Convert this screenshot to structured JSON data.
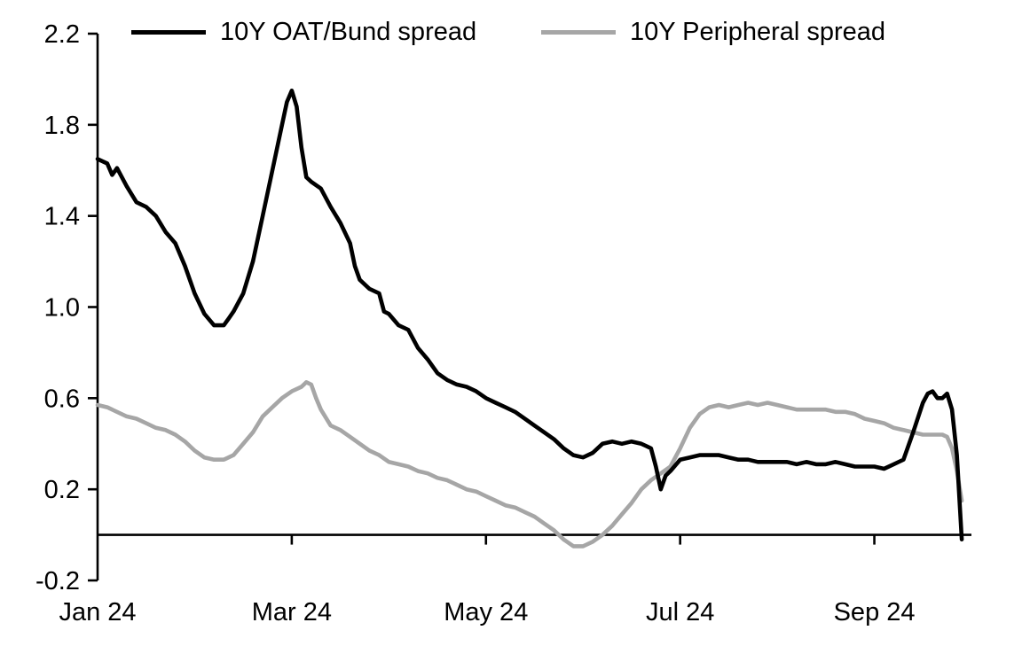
{
  "chart_data": {
    "type": "line",
    "title": "",
    "xlabel": "",
    "ylabel": "",
    "grid": false,
    "legend_position": "top",
    "ylim": [
      -0.2,
      2.2
    ],
    "xlim": [
      0,
      9
    ],
    "y_ticks": [
      2.2,
      1.8,
      1.4,
      1.0,
      0.6,
      0.2,
      -0.2
    ],
    "x_ticks": [
      {
        "pos": 0,
        "label": "Jan 24"
      },
      {
        "pos": 2,
        "label": "Mar 24"
      },
      {
        "pos": 4,
        "label": "May 24"
      },
      {
        "pos": 6,
        "label": "Jul 24"
      },
      {
        "pos": 8,
        "label": "Sep 24"
      }
    ],
    "series": [
      {
        "name": "10Y OAT/Bund spread",
        "id": "oat-bund-spread",
        "color": "#000000",
        "points": [
          [
            0,
            1.65
          ],
          [
            0.1,
            1.63
          ],
          [
            0.15,
            1.58
          ],
          [
            0.2,
            1.61
          ],
          [
            0.3,
            1.53
          ],
          [
            0.4,
            1.46
          ],
          [
            0.5,
            1.44
          ],
          [
            0.6,
            1.4
          ],
          [
            0.7,
            1.33
          ],
          [
            0.8,
            1.28
          ],
          [
            0.9,
            1.18
          ],
          [
            1.0,
            1.06
          ],
          [
            1.1,
            0.97
          ],
          [
            1.2,
            0.92
          ],
          [
            1.3,
            0.92
          ],
          [
            1.35,
            0.95
          ],
          [
            1.4,
            0.98
          ],
          [
            1.5,
            1.06
          ],
          [
            1.6,
            1.2
          ],
          [
            1.65,
            1.3
          ],
          [
            1.7,
            1.4
          ],
          [
            1.8,
            1.6
          ],
          [
            1.9,
            1.8
          ],
          [
            1.95,
            1.9
          ],
          [
            2.0,
            1.95
          ],
          [
            2.05,
            1.88
          ],
          [
            2.1,
            1.7
          ],
          [
            2.15,
            1.57
          ],
          [
            2.2,
            1.55
          ],
          [
            2.3,
            1.52
          ],
          [
            2.4,
            1.44
          ],
          [
            2.5,
            1.37
          ],
          [
            2.6,
            1.28
          ],
          [
            2.65,
            1.18
          ],
          [
            2.7,
            1.12
          ],
          [
            2.8,
            1.08
          ],
          [
            2.9,
            1.06
          ],
          [
            2.95,
            0.98
          ],
          [
            3.0,
            0.97
          ],
          [
            3.1,
            0.92
          ],
          [
            3.2,
            0.9
          ],
          [
            3.3,
            0.82
          ],
          [
            3.4,
            0.77
          ],
          [
            3.5,
            0.71
          ],
          [
            3.6,
            0.68
          ],
          [
            3.7,
            0.66
          ],
          [
            3.8,
            0.65
          ],
          [
            3.9,
            0.63
          ],
          [
            4.0,
            0.6
          ],
          [
            4.1,
            0.58
          ],
          [
            4.2,
            0.56
          ],
          [
            4.3,
            0.54
          ],
          [
            4.4,
            0.51
          ],
          [
            4.5,
            0.48
          ],
          [
            4.6,
            0.45
          ],
          [
            4.7,
            0.42
          ],
          [
            4.8,
            0.38
          ],
          [
            4.9,
            0.35
          ],
          [
            5.0,
            0.34
          ],
          [
            5.1,
            0.36
          ],
          [
            5.2,
            0.4
          ],
          [
            5.3,
            0.41
          ],
          [
            5.4,
            0.4
          ],
          [
            5.5,
            0.41
          ],
          [
            5.6,
            0.4
          ],
          [
            5.65,
            0.39
          ],
          [
            5.7,
            0.38
          ],
          [
            5.75,
            0.3
          ],
          [
            5.8,
            0.2
          ],
          [
            5.85,
            0.26
          ],
          [
            5.9,
            0.28
          ],
          [
            6.0,
            0.33
          ],
          [
            6.1,
            0.34
          ],
          [
            6.2,
            0.35
          ],
          [
            6.3,
            0.35
          ],
          [
            6.4,
            0.35
          ],
          [
            6.5,
            0.34
          ],
          [
            6.6,
            0.33
          ],
          [
            6.7,
            0.33
          ],
          [
            6.8,
            0.32
          ],
          [
            6.9,
            0.32
          ],
          [
            7.0,
            0.32
          ],
          [
            7.1,
            0.32
          ],
          [
            7.2,
            0.31
          ],
          [
            7.3,
            0.32
          ],
          [
            7.4,
            0.31
          ],
          [
            7.5,
            0.31
          ],
          [
            7.6,
            0.32
          ],
          [
            7.7,
            0.31
          ],
          [
            7.8,
            0.3
          ],
          [
            7.9,
            0.3
          ],
          [
            8.0,
            0.3
          ],
          [
            8.1,
            0.29
          ],
          [
            8.2,
            0.31
          ],
          [
            8.3,
            0.33
          ],
          [
            8.4,
            0.45
          ],
          [
            8.5,
            0.58
          ],
          [
            8.55,
            0.62
          ],
          [
            8.6,
            0.63
          ],
          [
            8.65,
            0.6
          ],
          [
            8.7,
            0.6
          ],
          [
            8.75,
            0.62
          ],
          [
            8.8,
            0.55
          ],
          [
            8.85,
            0.35
          ],
          [
            8.9,
            -0.02
          ]
        ]
      },
      {
        "name": "10Y Peripheral spread",
        "id": "peripheral-spread",
        "color": "#a6a6a6",
        "points": [
          [
            0,
            0.57
          ],
          [
            0.1,
            0.56
          ],
          [
            0.2,
            0.54
          ],
          [
            0.3,
            0.52
          ],
          [
            0.4,
            0.51
          ],
          [
            0.5,
            0.49
          ],
          [
            0.6,
            0.47
          ],
          [
            0.7,
            0.46
          ],
          [
            0.8,
            0.44
          ],
          [
            0.9,
            0.41
          ],
          [
            1.0,
            0.37
          ],
          [
            1.1,
            0.34
          ],
          [
            1.2,
            0.33
          ],
          [
            1.3,
            0.33
          ],
          [
            1.4,
            0.35
          ],
          [
            1.5,
            0.4
          ],
          [
            1.6,
            0.45
          ],
          [
            1.7,
            0.52
          ],
          [
            1.8,
            0.56
          ],
          [
            1.9,
            0.6
          ],
          [
            2.0,
            0.63
          ],
          [
            2.1,
            0.65
          ],
          [
            2.15,
            0.67
          ],
          [
            2.2,
            0.66
          ],
          [
            2.25,
            0.6
          ],
          [
            2.3,
            0.55
          ],
          [
            2.4,
            0.48
          ],
          [
            2.5,
            0.46
          ],
          [
            2.6,
            0.43
          ],
          [
            2.7,
            0.4
          ],
          [
            2.8,
            0.37
          ],
          [
            2.9,
            0.35
          ],
          [
            3.0,
            0.32
          ],
          [
            3.1,
            0.31
          ],
          [
            3.2,
            0.3
          ],
          [
            3.3,
            0.28
          ],
          [
            3.4,
            0.27
          ],
          [
            3.5,
            0.25
          ],
          [
            3.6,
            0.24
          ],
          [
            3.7,
            0.22
          ],
          [
            3.8,
            0.2
          ],
          [
            3.9,
            0.19
          ],
          [
            4.0,
            0.17
          ],
          [
            4.1,
            0.15
          ],
          [
            4.2,
            0.13
          ],
          [
            4.3,
            0.12
          ],
          [
            4.4,
            0.1
          ],
          [
            4.5,
            0.08
          ],
          [
            4.6,
            0.05
          ],
          [
            4.7,
            0.02
          ],
          [
            4.8,
            -0.02
          ],
          [
            4.9,
            -0.05
          ],
          [
            5.0,
            -0.05
          ],
          [
            5.1,
            -0.03
          ],
          [
            5.2,
            0.0
          ],
          [
            5.3,
            0.04
          ],
          [
            5.4,
            0.09
          ],
          [
            5.5,
            0.14
          ],
          [
            5.6,
            0.2
          ],
          [
            5.7,
            0.24
          ],
          [
            5.8,
            0.27
          ],
          [
            5.9,
            0.3
          ],
          [
            6.0,
            0.38
          ],
          [
            6.1,
            0.47
          ],
          [
            6.2,
            0.53
          ],
          [
            6.3,
            0.56
          ],
          [
            6.4,
            0.57
          ],
          [
            6.5,
            0.56
          ],
          [
            6.6,
            0.57
          ],
          [
            6.7,
            0.58
          ],
          [
            6.8,
            0.57
          ],
          [
            6.9,
            0.58
          ],
          [
            7.0,
            0.57
          ],
          [
            7.1,
            0.56
          ],
          [
            7.2,
            0.55
          ],
          [
            7.3,
            0.55
          ],
          [
            7.4,
            0.55
          ],
          [
            7.5,
            0.55
          ],
          [
            7.6,
            0.54
          ],
          [
            7.7,
            0.54
          ],
          [
            7.8,
            0.53
          ],
          [
            7.9,
            0.51
          ],
          [
            8.0,
            0.5
          ],
          [
            8.1,
            0.49
          ],
          [
            8.2,
            0.47
          ],
          [
            8.3,
            0.46
          ],
          [
            8.4,
            0.45
          ],
          [
            8.5,
            0.44
          ],
          [
            8.6,
            0.44
          ],
          [
            8.7,
            0.44
          ],
          [
            8.75,
            0.43
          ],
          [
            8.8,
            0.38
          ],
          [
            8.85,
            0.28
          ],
          [
            8.9,
            0.15
          ]
        ]
      }
    ]
  }
}
